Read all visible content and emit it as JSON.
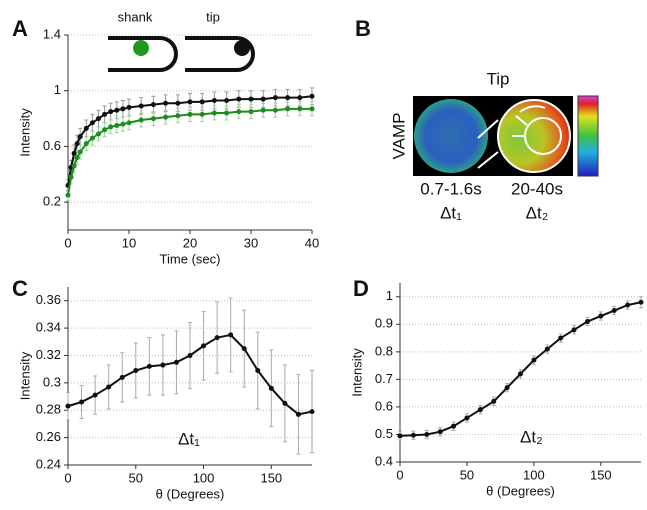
{
  "chart_data": [
    {
      "type": "line",
      "panel": "A",
      "xlabel": "Time (sec)",
      "ylabel": "Intensity",
      "annotations": [
        "shank",
        "tip"
      ],
      "x": [
        0,
        0.5,
        1,
        1.5,
        2,
        3,
        4,
        5,
        6,
        7,
        8,
        9,
        10,
        12,
        14,
        16,
        18,
        20,
        22,
        24,
        26,
        28,
        30,
        32,
        34,
        36,
        38,
        40
      ],
      "series": [
        {
          "color": "#111111",
          "error_color": "#999999",
          "values": [
            0.32,
            0.45,
            0.55,
            0.62,
            0.67,
            0.73,
            0.77,
            0.8,
            0.83,
            0.85,
            0.86,
            0.87,
            0.88,
            0.89,
            0.9,
            0.91,
            0.91,
            0.92,
            0.92,
            0.93,
            0.93,
            0.94,
            0.94,
            0.94,
            0.95,
            0.95,
            0.95,
            0.96
          ],
          "errors": [
            0.04,
            0.05,
            0.06,
            0.06,
            0.06,
            0.06,
            0.06,
            0.06,
            0.06,
            0.06,
            0.06,
            0.06,
            0.06,
            0.06,
            0.06,
            0.06,
            0.06,
            0.06,
            0.06,
            0.06,
            0.06,
            0.06,
            0.06,
            0.06,
            0.06,
            0.06,
            0.06,
            0.06
          ]
        },
        {
          "color": "#1e8c1e",
          "error_color": "#9fd49f",
          "values": [
            0.25,
            0.38,
            0.46,
            0.52,
            0.56,
            0.62,
            0.66,
            0.69,
            0.72,
            0.74,
            0.75,
            0.76,
            0.77,
            0.79,
            0.8,
            0.81,
            0.82,
            0.83,
            0.83,
            0.84,
            0.84,
            0.85,
            0.85,
            0.86,
            0.86,
            0.87,
            0.87,
            0.87
          ],
          "errors": [
            0.04,
            0.05,
            0.05,
            0.05,
            0.05,
            0.05,
            0.05,
            0.05,
            0.05,
            0.05,
            0.05,
            0.05,
            0.05,
            0.05,
            0.05,
            0.05,
            0.05,
            0.05,
            0.05,
            0.05,
            0.05,
            0.05,
            0.05,
            0.05,
            0.05,
            0.05,
            0.05,
            0.05
          ]
        }
      ],
      "xlim": [
        0,
        40
      ],
      "xticks": [
        0,
        10,
        20,
        30,
        40
      ],
      "ylim": [
        0,
        1.4
      ],
      "yticks": [
        0.2,
        0.6,
        1,
        1.4
      ],
      "grid": true
    },
    {
      "type": "image",
      "panel": "B",
      "title": "Tip",
      "ylabel": "VAMP",
      "images": [
        {
          "caption": "0.7-1.6s",
          "label": "Δt₁"
        },
        {
          "caption": "20-40s",
          "label": "Δt₂"
        }
      ]
    },
    {
      "type": "line",
      "panel": "C",
      "xlabel": "θ (Degrees)",
      "ylabel": "Intensity",
      "annotations": [
        "Δt₁"
      ],
      "x": [
        0,
        10,
        20,
        30,
        40,
        50,
        60,
        70,
        80,
        90,
        100,
        110,
        120,
        130,
        140,
        150,
        160,
        170,
        180
      ],
      "series": [
        {
          "color": "#111111",
          "error_color": "#aaaaaa",
          "values": [
            0.283,
            0.286,
            0.291,
            0.297,
            0.304,
            0.309,
            0.312,
            0.313,
            0.315,
            0.32,
            0.327,
            0.333,
            0.335,
            0.325,
            0.309,
            0.296,
            0.285,
            0.277,
            0.279
          ],
          "errors": [
            0.01,
            0.012,
            0.014,
            0.016,
            0.018,
            0.02,
            0.021,
            0.022,
            0.023,
            0.024,
            0.025,
            0.026,
            0.027,
            0.028,
            0.028,
            0.028,
            0.028,
            0.029,
            0.03
          ]
        }
      ],
      "xlim": [
        0,
        180
      ],
      "xticks": [
        0,
        50,
        100,
        150
      ],
      "ylim": [
        0.24,
        0.37
      ],
      "yticks": [
        0.24,
        0.26,
        0.28,
        0.3,
        0.32,
        0.34,
        0.36
      ],
      "grid": true
    },
    {
      "type": "line",
      "panel": "D",
      "xlabel": "θ (Degrees)",
      "ylabel": "Intensity",
      "annotations": [
        "Δt₂"
      ],
      "x": [
        0,
        10,
        20,
        30,
        40,
        50,
        60,
        70,
        80,
        90,
        100,
        110,
        120,
        130,
        140,
        150,
        160,
        170,
        180
      ],
      "series": [
        {
          "color": "#111111",
          "error_color": "#aaaaaa",
          "values": [
            0.495,
            0.497,
            0.5,
            0.51,
            0.53,
            0.56,
            0.59,
            0.62,
            0.67,
            0.72,
            0.77,
            0.81,
            0.85,
            0.88,
            0.91,
            0.93,
            0.95,
            0.97,
            0.98
          ],
          "errors": [
            0.015,
            0.015,
            0.015,
            0.015,
            0.015,
            0.015,
            0.015,
            0.015,
            0.015,
            0.015,
            0.015,
            0.015,
            0.015,
            0.015,
            0.015,
            0.015,
            0.015,
            0.015,
            0.02
          ]
        }
      ],
      "xlim": [
        0,
        180
      ],
      "xticks": [
        0,
        50,
        100,
        150
      ],
      "ylim": [
        0.4,
        1.05
      ],
      "yticks": [
        0.4,
        0.5,
        0.6,
        0.7,
        0.8,
        0.9,
        1
      ],
      "grid": true
    }
  ]
}
